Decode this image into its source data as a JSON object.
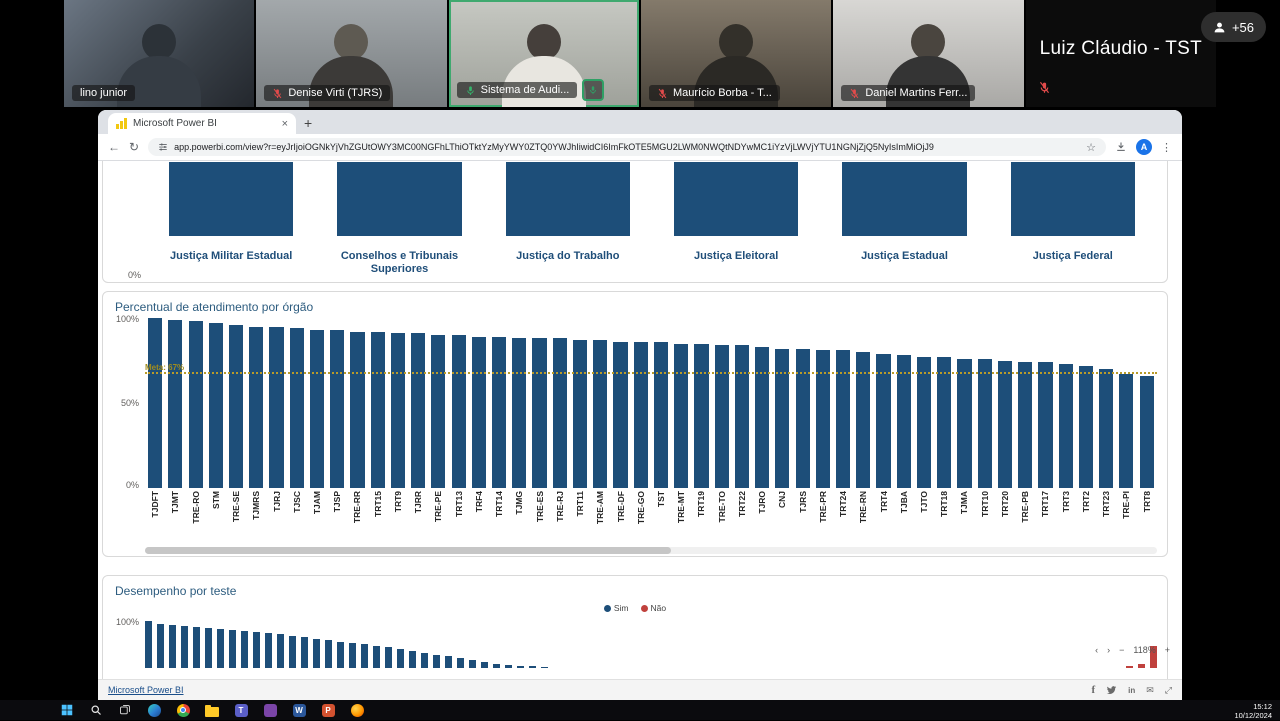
{
  "meeting": {
    "overflow_badge": "+56",
    "participants": [
      {
        "name": "lino junior",
        "muted": false,
        "active": false
      },
      {
        "name": "Denise Virti (TJRS)",
        "muted": true,
        "active": false
      },
      {
        "name": "Sistema de Audi...",
        "muted": false,
        "active": true
      },
      {
        "name": "Maurício Borba - T...",
        "muted": true,
        "active": false
      },
      {
        "name": "Daniel Martins Ferr...",
        "muted": true,
        "active": false
      },
      {
        "name": "Luiz Cláudio - TST",
        "muted": true,
        "active": false,
        "camera_off": true
      }
    ]
  },
  "browser": {
    "tab_title": "Microsoft Power BI",
    "url": "app.powerbi.com/view?r=eyJrIjoiOGNkYjVhZGUtOWY3MC00NGFhLThiOTktYzMyYWY0ZTQ0YWJhIiwidCI6ImFkOTE5MGU2LWM0NWQtNDYwMC1iYzVjLWVjYTU1NGNjZjQ5NyIsImMiOjJ9",
    "avatar_letter": "A"
  },
  "report": {
    "footer_brand": "Microsoft Power BI",
    "zoom_level": "118%"
  },
  "taskbar": {
    "time": "15:12",
    "date": "10/12/2024"
  },
  "colors": {
    "bar_blue": "#1d4e79",
    "bar_red": "#c0413d",
    "meta_line": "#b89b2a",
    "title_blue": "#2d5c7f"
  },
  "icons": {
    "back": "←",
    "reload": "↻",
    "star": "☆",
    "kebab": "⋮",
    "close": "×",
    "newtab": "+",
    "chevron_left": "‹",
    "chevron_right": "›",
    "minus": "−",
    "plus": "+",
    "envelope": "✉",
    "facebook": "f",
    "linkedin": "in",
    "fullscreen": "⤢"
  },
  "chart_data": [
    {
      "type": "bar",
      "title": "",
      "categories": [
        "Justiça Militar Estadual",
        "Conselhos e Tribunais Superiores",
        "Justiça do Trabalho",
        "Justiça Eleitoral",
        "Justiça Estadual",
        "Justiça Federal"
      ],
      "values": [
        100,
        100,
        100,
        100,
        100,
        100
      ],
      "axis_label": "0%",
      "ylim": [
        0,
        100
      ]
    },
    {
      "type": "bar",
      "title": "Percentual de atendimento por órgão",
      "categories": [
        "TJDFT",
        "TJMT",
        "TRE-RO",
        "STM",
        "TRE-SE",
        "TJMRS",
        "TJRJ",
        "TJSC",
        "TJAM",
        "TJSP",
        "TRE-RR",
        "TRT15",
        "TRT9",
        "TJRR",
        "TRE-PE",
        "TRT13",
        "TRF4",
        "TRT14",
        "TJMG",
        "TRE-ES",
        "TRE-RJ",
        "TRT11",
        "TRE-AM",
        "TRE-DF",
        "TRE-GO",
        "TST",
        "TRE-MT",
        "TRT19",
        "TRE-TO",
        "TRT22",
        "TJRO",
        "CNJ",
        "TJRS",
        "TRE-PR",
        "TRT24",
        "TRE-RN",
        "TRT4",
        "TJBA",
        "TJTO",
        "TRT18",
        "TJMA",
        "TRT10",
        "TRT20",
        "TRE-PB",
        "TRT17",
        "TRT3",
        "TRT2",
        "TRT23",
        "TRE-PI",
        "TRT8"
      ],
      "values": [
        100,
        99,
        98,
        97,
        96,
        95,
        95,
        94,
        93,
        93,
        92,
        92,
        91,
        91,
        90,
        90,
        89,
        89,
        88,
        88,
        88,
        87,
        87,
        86,
        86,
        86,
        85,
        85,
        84,
        84,
        83,
        82,
        82,
        81,
        81,
        80,
        79,
        78,
        77,
        77,
        76,
        76,
        75,
        74,
        74,
        73,
        72,
        70,
        67,
        66
      ],
      "yticks": [
        "100%",
        "50%",
        "0%"
      ],
      "ylim": [
        0,
        100
      ],
      "ref_line": {
        "label": "Meta: 67%",
        "value": 67
      }
    },
    {
      "type": "bar",
      "title": "Desempenho por teste",
      "yticks": [
        "100%"
      ],
      "ylim": [
        0,
        100
      ],
      "series": [
        {
          "name": "Sim",
          "color": "#1d4e79",
          "values": [
            97,
            92,
            90,
            88,
            86,
            84,
            82,
            80,
            78,
            76,
            73,
            70,
            67,
            64,
            61,
            58,
            55,
            52,
            49,
            46,
            43,
            40,
            36,
            32,
            28,
            24,
            20,
            16,
            12,
            9,
            7,
            5,
            4,
            3
          ]
        },
        {
          "name": "Não",
          "color": "#c0413d",
          "values": [
            4,
            8,
            46
          ]
        }
      ]
    }
  ]
}
